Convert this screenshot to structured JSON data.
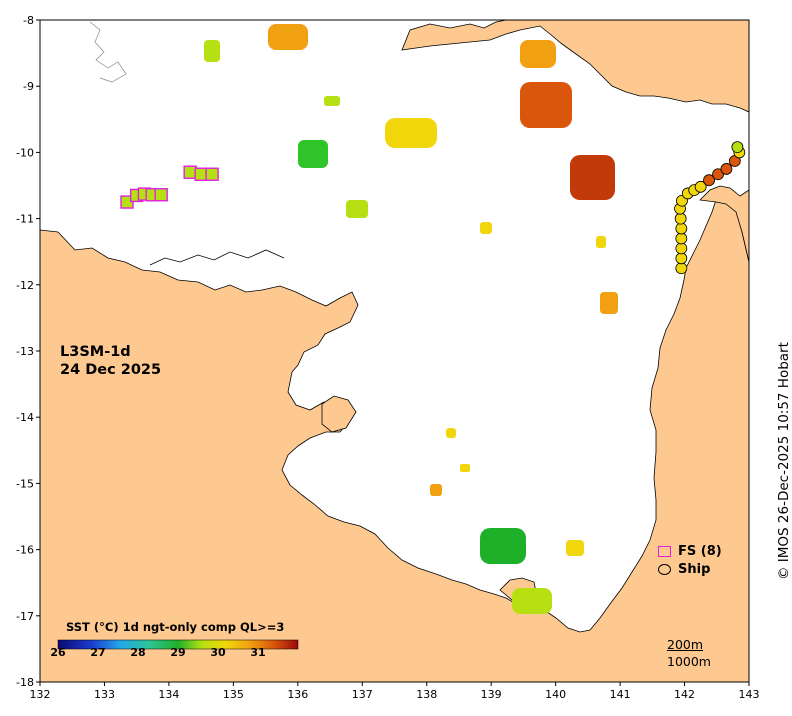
{
  "map": {
    "product": "L3SM-1d",
    "date": "24 Dec 2025",
    "lon_min": 132,
    "lon_max": 143,
    "lat_min": -18,
    "lat_max": -8,
    "x_ticks": [
      "132",
      "133",
      "134",
      "135",
      "136",
      "137",
      "138",
      "139",
      "140",
      "141",
      "142",
      "143"
    ],
    "y_ticks": [
      "-8",
      "-9",
      "-10",
      "-11",
      "-12",
      "-13",
      "-14",
      "-15",
      "-16",
      "-17",
      "-18"
    ],
    "colors": {
      "land": "#fdc991",
      "frame": "#000000",
      "fs": "#e020e0"
    }
  },
  "legend": {
    "fs_label": "FS (8)",
    "ship_label": "Ship"
  },
  "colorbar": {
    "title": "SST (°C) 1d ngt-only comp QL>=3",
    "ticks": [
      "26",
      "27",
      "28",
      "29",
      "30",
      "31"
    ],
    "min": 26,
    "max": 32
  },
  "contours": {
    "line1": "200m",
    "line2": "1000m"
  },
  "credit": "© IMOS 26-Dec-2025 10:57 Hobart",
  "fs_points": [
    {
      "lon": 133.35,
      "lat": -10.75,
      "sst": 29.9
    },
    {
      "lon": 133.5,
      "lat": -10.65,
      "sst": 29.9
    },
    {
      "lon": 133.62,
      "lat": -10.63,
      "sst": 29.9
    },
    {
      "lon": 133.74,
      "lat": -10.64,
      "sst": 29.9
    },
    {
      "lon": 133.88,
      "lat": -10.64,
      "sst": 29.9
    },
    {
      "lon": 134.33,
      "lat": -10.3,
      "sst": 30.1
    },
    {
      "lon": 134.5,
      "lat": -10.33,
      "sst": 30.1
    },
    {
      "lon": 134.67,
      "lat": -10.33,
      "sst": 30.1
    }
  ],
  "ship_points": [
    {
      "lon": 141.95,
      "lat": -11.75,
      "sst": 30.7
    },
    {
      "lon": 141.95,
      "lat": -11.6,
      "sst": 30.7
    },
    {
      "lon": 141.95,
      "lat": -11.45,
      "sst": 30.7
    },
    {
      "lon": 141.95,
      "lat": -11.3,
      "sst": 30.7
    },
    {
      "lon": 141.95,
      "lat": -11.15,
      "sst": 30.7
    },
    {
      "lon": 141.94,
      "lat": -11.0,
      "sst": 30.7
    },
    {
      "lon": 141.93,
      "lat": -10.85,
      "sst": 30.7
    },
    {
      "lon": 141.96,
      "lat": -10.73,
      "sst": 30.7
    },
    {
      "lon": 142.05,
      "lat": -10.62,
      "sst": 30.7
    },
    {
      "lon": 142.15,
      "lat": -10.57,
      "sst": 30.6
    },
    {
      "lon": 142.25,
      "lat": -10.52,
      "sst": 30.6
    },
    {
      "lon": 142.38,
      "lat": -10.42,
      "sst": 31.3
    },
    {
      "lon": 142.52,
      "lat": -10.33,
      "sst": 31.3
    },
    {
      "lon": 142.65,
      "lat": -10.25,
      "sst": 31.4
    },
    {
      "lon": 142.78,
      "lat": -10.13,
      "sst": 31.4
    },
    {
      "lon": 142.85,
      "lat": -10.0,
      "sst": 30.7
    },
    {
      "lon": 142.82,
      "lat": -9.92,
      "sst": 30.1
    }
  ]
}
